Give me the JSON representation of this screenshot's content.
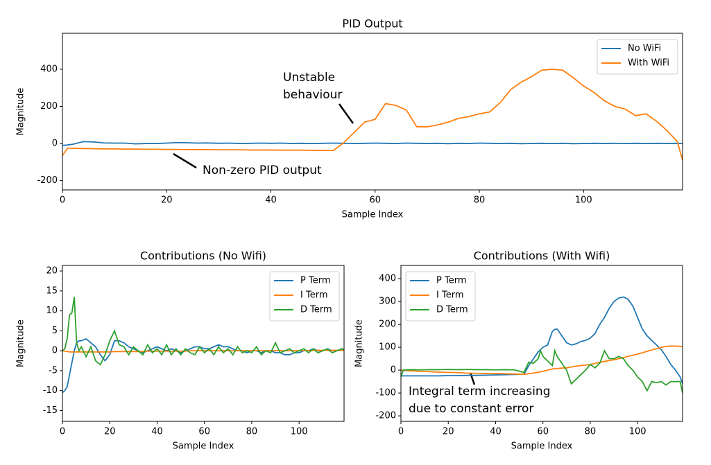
{
  "chart_data": [
    {
      "type": "line",
      "title": "PID Output",
      "xlabel": "Sample Index",
      "ylabel": "Magnitude",
      "xlim": [
        0,
        119
      ],
      "ylim": [
        -250,
        594
      ],
      "xticks": [
        0,
        20,
        40,
        60,
        80,
        100
      ],
      "yticks": [
        -200,
        0,
        200,
        400
      ],
      "legend": "upper right",
      "x": [
        0,
        1,
        2,
        4,
        6,
        8,
        10,
        12,
        14,
        16,
        18,
        20,
        22,
        24,
        26,
        28,
        30,
        32,
        34,
        36,
        38,
        40,
        42,
        44,
        46,
        48,
        50,
        52,
        54,
        56,
        58,
        60,
        62,
        64,
        66,
        68,
        70,
        72,
        74,
        76,
        78,
        80,
        82,
        84,
        86,
        88,
        90,
        92,
        94,
        96,
        98,
        100,
        102,
        104,
        106,
        108,
        110,
        112,
        114,
        116,
        118,
        119
      ],
      "series": [
        {
          "name": "No WiFi",
          "color": "#1f77b4",
          "values": [
            -10,
            -8,
            -4,
            10,
            8,
            3,
            2,
            2,
            -2,
            0,
            0,
            2,
            5,
            4,
            2,
            3,
            1,
            2,
            0,
            1,
            2,
            1,
            2,
            0,
            1,
            0,
            1,
            2,
            1,
            0,
            1,
            2,
            1,
            0,
            2,
            1,
            0,
            1,
            -1,
            1,
            0,
            2,
            1,
            0,
            1,
            -1,
            0,
            1,
            0,
            1,
            -1,
            0,
            1,
            0,
            1,
            0,
            1,
            0,
            1,
            0,
            1,
            0
          ]
        },
        {
          "name": "With WiFi",
          "color": "#ff7f0e",
          "values": [
            -65,
            -25,
            -26,
            -27,
            -28,
            -29,
            -29,
            -30,
            -30,
            -31,
            -31,
            -32,
            -32,
            -33,
            -33,
            -33,
            -34,
            -34,
            -34,
            -35,
            -35,
            -35,
            -36,
            -36,
            -36,
            -37,
            -37,
            -38,
            5,
            60,
            115,
            130,
            215,
            205,
            180,
            90,
            90,
            100,
            115,
            135,
            145,
            160,
            170,
            220,
            290,
            330,
            360,
            395,
            400,
            395,
            355,
            310,
            275,
            230,
            200,
            185,
            150,
            160,
            120,
            70,
            10,
            -90
          ]
        }
      ],
      "annotations": [
        {
          "text": [
            "Unstable",
            "behaviour"
          ]
        },
        {
          "text": [
            "Non-zero PID output"
          ]
        }
      ]
    },
    {
      "type": "line",
      "title": "Contributions (No Wifi)",
      "xlabel": "Sample Index",
      "ylabel": "Magnitude",
      "xlim": [
        0,
        119
      ],
      "ylim": [
        -17.7,
        21.4
      ],
      "xticks": [
        0,
        20,
        40,
        60,
        80,
        100
      ],
      "yticks": [
        -15,
        -10,
        -5,
        0,
        5,
        10,
        15,
        20
      ],
      "legend": "upper right",
      "x": [
        0,
        1,
        2,
        3,
        4,
        5,
        6,
        7,
        8,
        10,
        12,
        14,
        16,
        18,
        20,
        22,
        24,
        26,
        28,
        30,
        32,
        34,
        36,
        38,
        40,
        42,
        44,
        46,
        48,
        50,
        52,
        54,
        56,
        58,
        60,
        62,
        64,
        66,
        68,
        70,
        72,
        74,
        76,
        78,
        80,
        82,
        84,
        86,
        88,
        90,
        92,
        94,
        96,
        98,
        100,
        102,
        104,
        106,
        108,
        110,
        112,
        114,
        116,
        118,
        119
      ],
      "series": [
        {
          "name": "P Term",
          "color": "#1f77b4",
          "values": [
            -10.5,
            -10,
            -9,
            -6,
            -3,
            0,
            2,
            2.5,
            2.5,
            3,
            2,
            1,
            -1,
            -2.5,
            -1,
            2.5,
            2.5,
            2,
            1,
            0.5,
            0,
            -0.5,
            0,
            0.5,
            1,
            0.5,
            0,
            0.5,
            0,
            -0.5,
            0,
            0.5,
            1,
            1,
            0.5,
            0.5,
            1,
            1.5,
            1,
            1,
            0.5,
            0,
            0,
            -0.5,
            0,
            0,
            -0.5,
            0,
            0,
            -0.5,
            -0.5,
            -1,
            -1,
            -0.5,
            -0.5,
            0,
            0,
            0.5,
            0,
            0,
            0.5,
            0,
            0,
            0.5,
            0.3
          ]
        },
        {
          "name": "I Term",
          "color": "#ff7f0e",
          "values": [
            0,
            -0.1,
            -0.2,
            -0.3,
            -0.3,
            -0.3,
            -0.3,
            -0.3,
            -0.3,
            -0.3,
            -0.3,
            -0.3,
            -0.3,
            -0.3,
            -0.3,
            -0.2,
            -0.2,
            -0.2,
            -0.2,
            -0.2,
            -0.2,
            -0.2,
            -0.1,
            -0.1,
            -0.1,
            -0.1,
            -0.1,
            -0.1,
            -0.1,
            -0.1,
            -0.1,
            0,
            0,
            0,
            0,
            0,
            0,
            0,
            0,
            0,
            0,
            0,
            0,
            0,
            0,
            0,
            0,
            0,
            0,
            0,
            0,
            0,
            0,
            0,
            0,
            0,
            0,
            0.1,
            0.1,
            0.1,
            0.1,
            0.1,
            0.1,
            0.1,
            0.1
          ]
        },
        {
          "name": "D Term",
          "color": "#2ca02c",
          "values": [
            0,
            0.5,
            3,
            9,
            9.5,
            13.5,
            2,
            0,
            1,
            -1.5,
            1,
            -2.5,
            -3.5,
            -1,
            2.5,
            5,
            1.5,
            1,
            -1,
            1,
            0,
            -1,
            1.5,
            -0.5,
            0.5,
            -1,
            1.5,
            -1,
            0.5,
            -1,
            0.5,
            -0.5,
            -1,
            1,
            -0.5,
            0.5,
            -1,
            1,
            -0.5,
            0.5,
            -1,
            1,
            -0.5,
            0,
            -0.5,
            1,
            -1,
            0,
            -0.5,
            2,
            -0.5,
            0,
            0.5,
            -0.5,
            0,
            0.5,
            -0.5,
            0.5,
            -0.5,
            0,
            0.5,
            -0.5,
            0,
            0.5,
            0.3
          ]
        }
      ]
    },
    {
      "type": "line",
      "title": "Contributions (With Wifi)",
      "xlabel": "Sample Index",
      "ylabel": "Magnitude",
      "xlim": [
        0,
        119
      ],
      "ylim": [
        -224,
        458
      ],
      "xticks": [
        0,
        20,
        40,
        60,
        80,
        100
      ],
      "yticks": [
        -200,
        -100,
        0,
        100,
        200,
        300,
        400
      ],
      "legend": "upper left",
      "x": [
        0,
        1,
        2,
        4,
        8,
        12,
        16,
        20,
        24,
        28,
        32,
        36,
        40,
        44,
        48,
        52,
        54,
        56,
        58,
        59,
        60,
        62,
        64,
        65,
        66,
        68,
        70,
        72,
        74,
        76,
        78,
        80,
        82,
        84,
        86,
        88,
        90,
        92,
        94,
        96,
        98,
        100,
        102,
        104,
        106,
        108,
        110,
        112,
        114,
        116,
        118,
        119
      ],
      "series": [
        {
          "name": "P Term",
          "color": "#1f77b4",
          "values": [
            -25,
            -25,
            -25,
            -25,
            -25,
            -25,
            -25,
            -24,
            -24,
            -23,
            -23,
            -22,
            -21,
            -20,
            -19,
            -18,
            20,
            50,
            80,
            90,
            100,
            110,
            170,
            178,
            180,
            150,
            120,
            110,
            115,
            125,
            130,
            140,
            160,
            200,
            230,
            270,
            300,
            315,
            320,
            310,
            280,
            230,
            180,
            150,
            130,
            110,
            90,
            60,
            25,
            0,
            -30,
            -60
          ]
        },
        {
          "name": "I Term",
          "color": "#ff7f0e",
          "values": [
            0,
            -1,
            -2,
            -3,
            -5,
            -7,
            -9,
            -10,
            -11,
            -13,
            -14,
            -15,
            -15,
            -16,
            -17,
            -18,
            -16,
            -13,
            -9,
            -7,
            -5,
            0,
            5,
            6,
            7,
            9,
            10,
            14,
            17,
            20,
            22,
            25,
            29,
            34,
            38,
            42,
            45,
            50,
            55,
            60,
            65,
            70,
            76,
            82,
            88,
            94,
            100,
            104,
            105,
            105,
            104,
            103
          ]
        },
        {
          "name": "D Term",
          "color": "#2ca02c",
          "values": [
            -30,
            0,
            1,
            2,
            1,
            2,
            2,
            3,
            2,
            3,
            2,
            2,
            1,
            2,
            1,
            -10,
            35,
            30,
            50,
            85,
            60,
            40,
            20,
            85,
            60,
            30,
            0,
            -60,
            -40,
            -20,
            0,
            25,
            10,
            30,
            85,
            50,
            50,
            60,
            50,
            20,
            0,
            -30,
            -50,
            -90,
            -50,
            -55,
            -50,
            -65,
            -50,
            -50,
            -50,
            -100
          ]
        }
      ],
      "annotations": [
        {
          "text": [
            "Integral term increasing",
            "due to constant error"
          ]
        }
      ]
    }
  ]
}
